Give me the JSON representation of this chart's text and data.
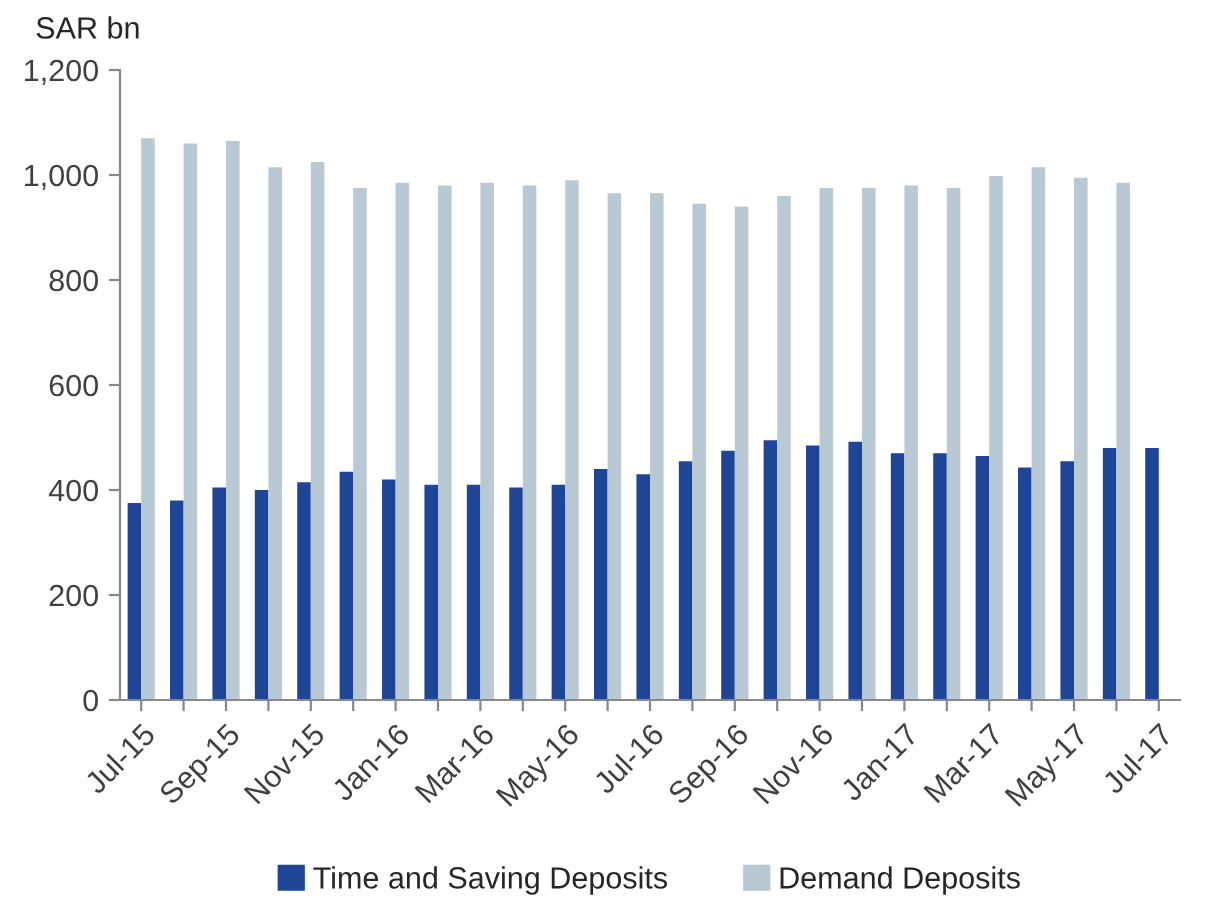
{
  "chart_data": {
    "type": "bar",
    "ylabel": "SAR bn",
    "categories": [
      "Jul-15",
      null,
      "Sep-15",
      null,
      "Nov-15",
      null,
      "Jan-16",
      null,
      "Mar-16",
      null,
      "May-16",
      null,
      "Jul-16",
      null,
      "Sep-16",
      null,
      "Nov-16",
      null,
      "Jan-17",
      null,
      "Mar-17",
      null,
      "May-17",
      null,
      "Jul-17"
    ],
    "series": [
      {
        "name": "Time and Saving Deposits",
        "color": "#1f4597",
        "values": [
          375,
          380,
          405,
          400,
          415,
          435,
          420,
          410,
          410,
          405,
          410,
          440,
          430,
          455,
          475,
          495,
          485,
          492,
          470,
          470,
          465,
          443,
          455,
          480,
          480
        ]
      },
      {
        "name": "Demand Deposits",
        "color": "#b9c9d3",
        "values": [
          1070,
          1060,
          1065,
          1015,
          1025,
          975,
          985,
          980,
          985,
          980,
          990,
          965,
          965,
          945,
          940,
          960,
          975,
          975,
          980,
          975,
          998,
          1015,
          995,
          985,
          null
        ]
      }
    ],
    "ylim": [
      0,
      1200
    ],
    "yticks": [
      0,
      200,
      400,
      600,
      800,
      {
        "value": 1000,
        "label": "1,000"
      },
      {
        "value": 1200,
        "label": "1,200"
      }
    ],
    "grid": false,
    "legend": "bottom"
  }
}
